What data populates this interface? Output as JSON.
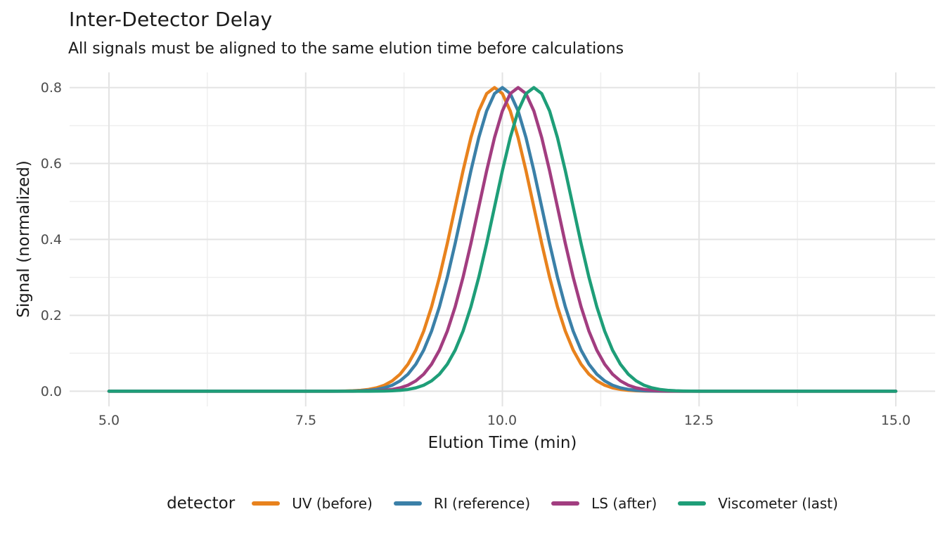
{
  "chart_data": {
    "type": "line",
    "title": "Inter-Detector Delay",
    "subtitle": "All signals must be aligned to the same elution time before calculations",
    "xlabel": "Elution Time (min)",
    "ylabel": "Signal (normalized)",
    "xlim": [
      5.0,
      15.0
    ],
    "ylim": [
      0.0,
      0.8
    ],
    "axis_expansion": 0.05,
    "x_ticks": [
      5.0,
      7.5,
      10.0,
      12.5,
      15.0
    ],
    "x_tick_labels": [
      "5.0",
      "7.5",
      "10.0",
      "12.5",
      "15.0"
    ],
    "x_minor_gridlines": [
      6.25,
      8.75,
      11.25,
      13.75
    ],
    "y_ticks": [
      0.0,
      0.2,
      0.4,
      0.6,
      0.8
    ],
    "y_tick_labels": [
      "0.0",
      "0.2",
      "0.4",
      "0.6",
      "0.8"
    ],
    "y_minor_gridlines": [
      0.1,
      0.3,
      0.5,
      0.7
    ],
    "grid": "major+minor",
    "legend_position": "bottom",
    "legend_title": "detector",
    "curve_model": "gaussian",
    "sample_x_start": 5.0,
    "sample_x_end": 15.0,
    "sample_x_step": 0.1,
    "series": [
      {
        "name": "UV (before)",
        "color": "#E8821D",
        "peak_center": 9.9,
        "peak_height": 0.8,
        "sigma": 0.5
      },
      {
        "name": "RI (reference)",
        "color": "#3B80A8",
        "peak_center": 10.0,
        "peak_height": 0.8,
        "sigma": 0.5
      },
      {
        "name": "LS (after)",
        "color": "#A23D80",
        "peak_center": 10.2,
        "peak_height": 0.8,
        "sigma": 0.5
      },
      {
        "name": "Viscometer (last)",
        "color": "#1E9E78",
        "peak_center": 10.4,
        "peak_height": 0.8,
        "sigma": 0.5
      }
    ],
    "style": {
      "background": "#FFFFFF",
      "grid_major_color": "#E3E3E3",
      "grid_minor_color": "#EFEFEF",
      "tick_label_color": "#4D4D4D",
      "text_color": "#1A1A1A",
      "line_width": 4.5
    }
  }
}
